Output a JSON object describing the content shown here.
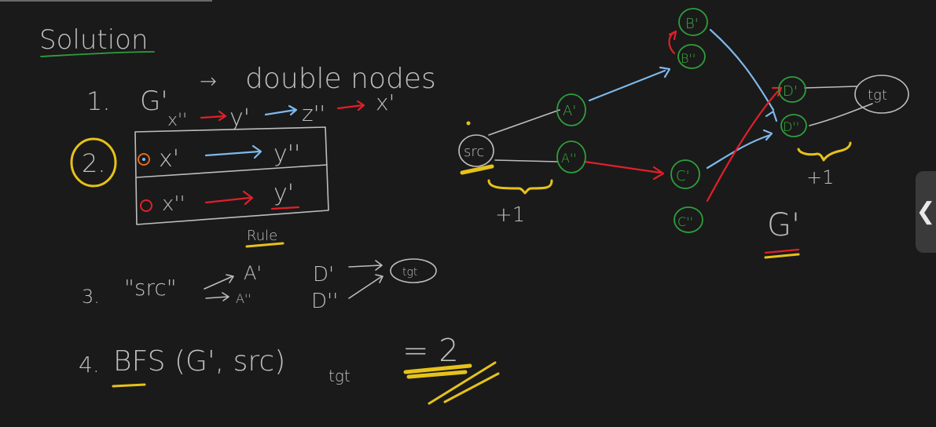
{
  "notes": {
    "heading": "Solution",
    "step1_num": "1.",
    "step1_g": "G'",
    "step1_arrow": "→",
    "step1_text": "double nodes",
    "chain_x2": "x''",
    "chain_y1": "y'",
    "chain_z2": "z''",
    "chain_x1": "x'",
    "step2_num": "2.",
    "rule_row1_from": "x'",
    "rule_row1_to": "y''",
    "rule_row2_from": "x''",
    "rule_row2_to": "y'",
    "rule_caption": "Rule",
    "step3_num": "3.",
    "step3_src": "\"src\"",
    "step3_a1": "A'",
    "step3_a2": "A''",
    "step3_d1": "D'",
    "step3_d2": "D''",
    "step3_tgt": "tgt",
    "step4_num": "4.",
    "step4_text": "BFS (G', src)",
    "step4_sub": "tgt",
    "step4_result": "= 2"
  },
  "graph": {
    "src": "src",
    "a1": "A'",
    "a2": "A''",
    "b1": "B'",
    "b2": "B''",
    "c1": "C'",
    "c2": "C''",
    "d1": "D'",
    "d2": "D''",
    "tgt": "tgt",
    "plus_left": "+1",
    "plus_right": "+1",
    "graph_label": "G'"
  },
  "ui": {
    "side_tab_glyph": "❮"
  },
  "colors": {
    "background": "#1a1a1a",
    "chalk": "#bfbfbf",
    "green": "#2e9e3c",
    "blue": "#7fb8ea",
    "red": "#e0202a",
    "yellow": "#e6c21a"
  }
}
